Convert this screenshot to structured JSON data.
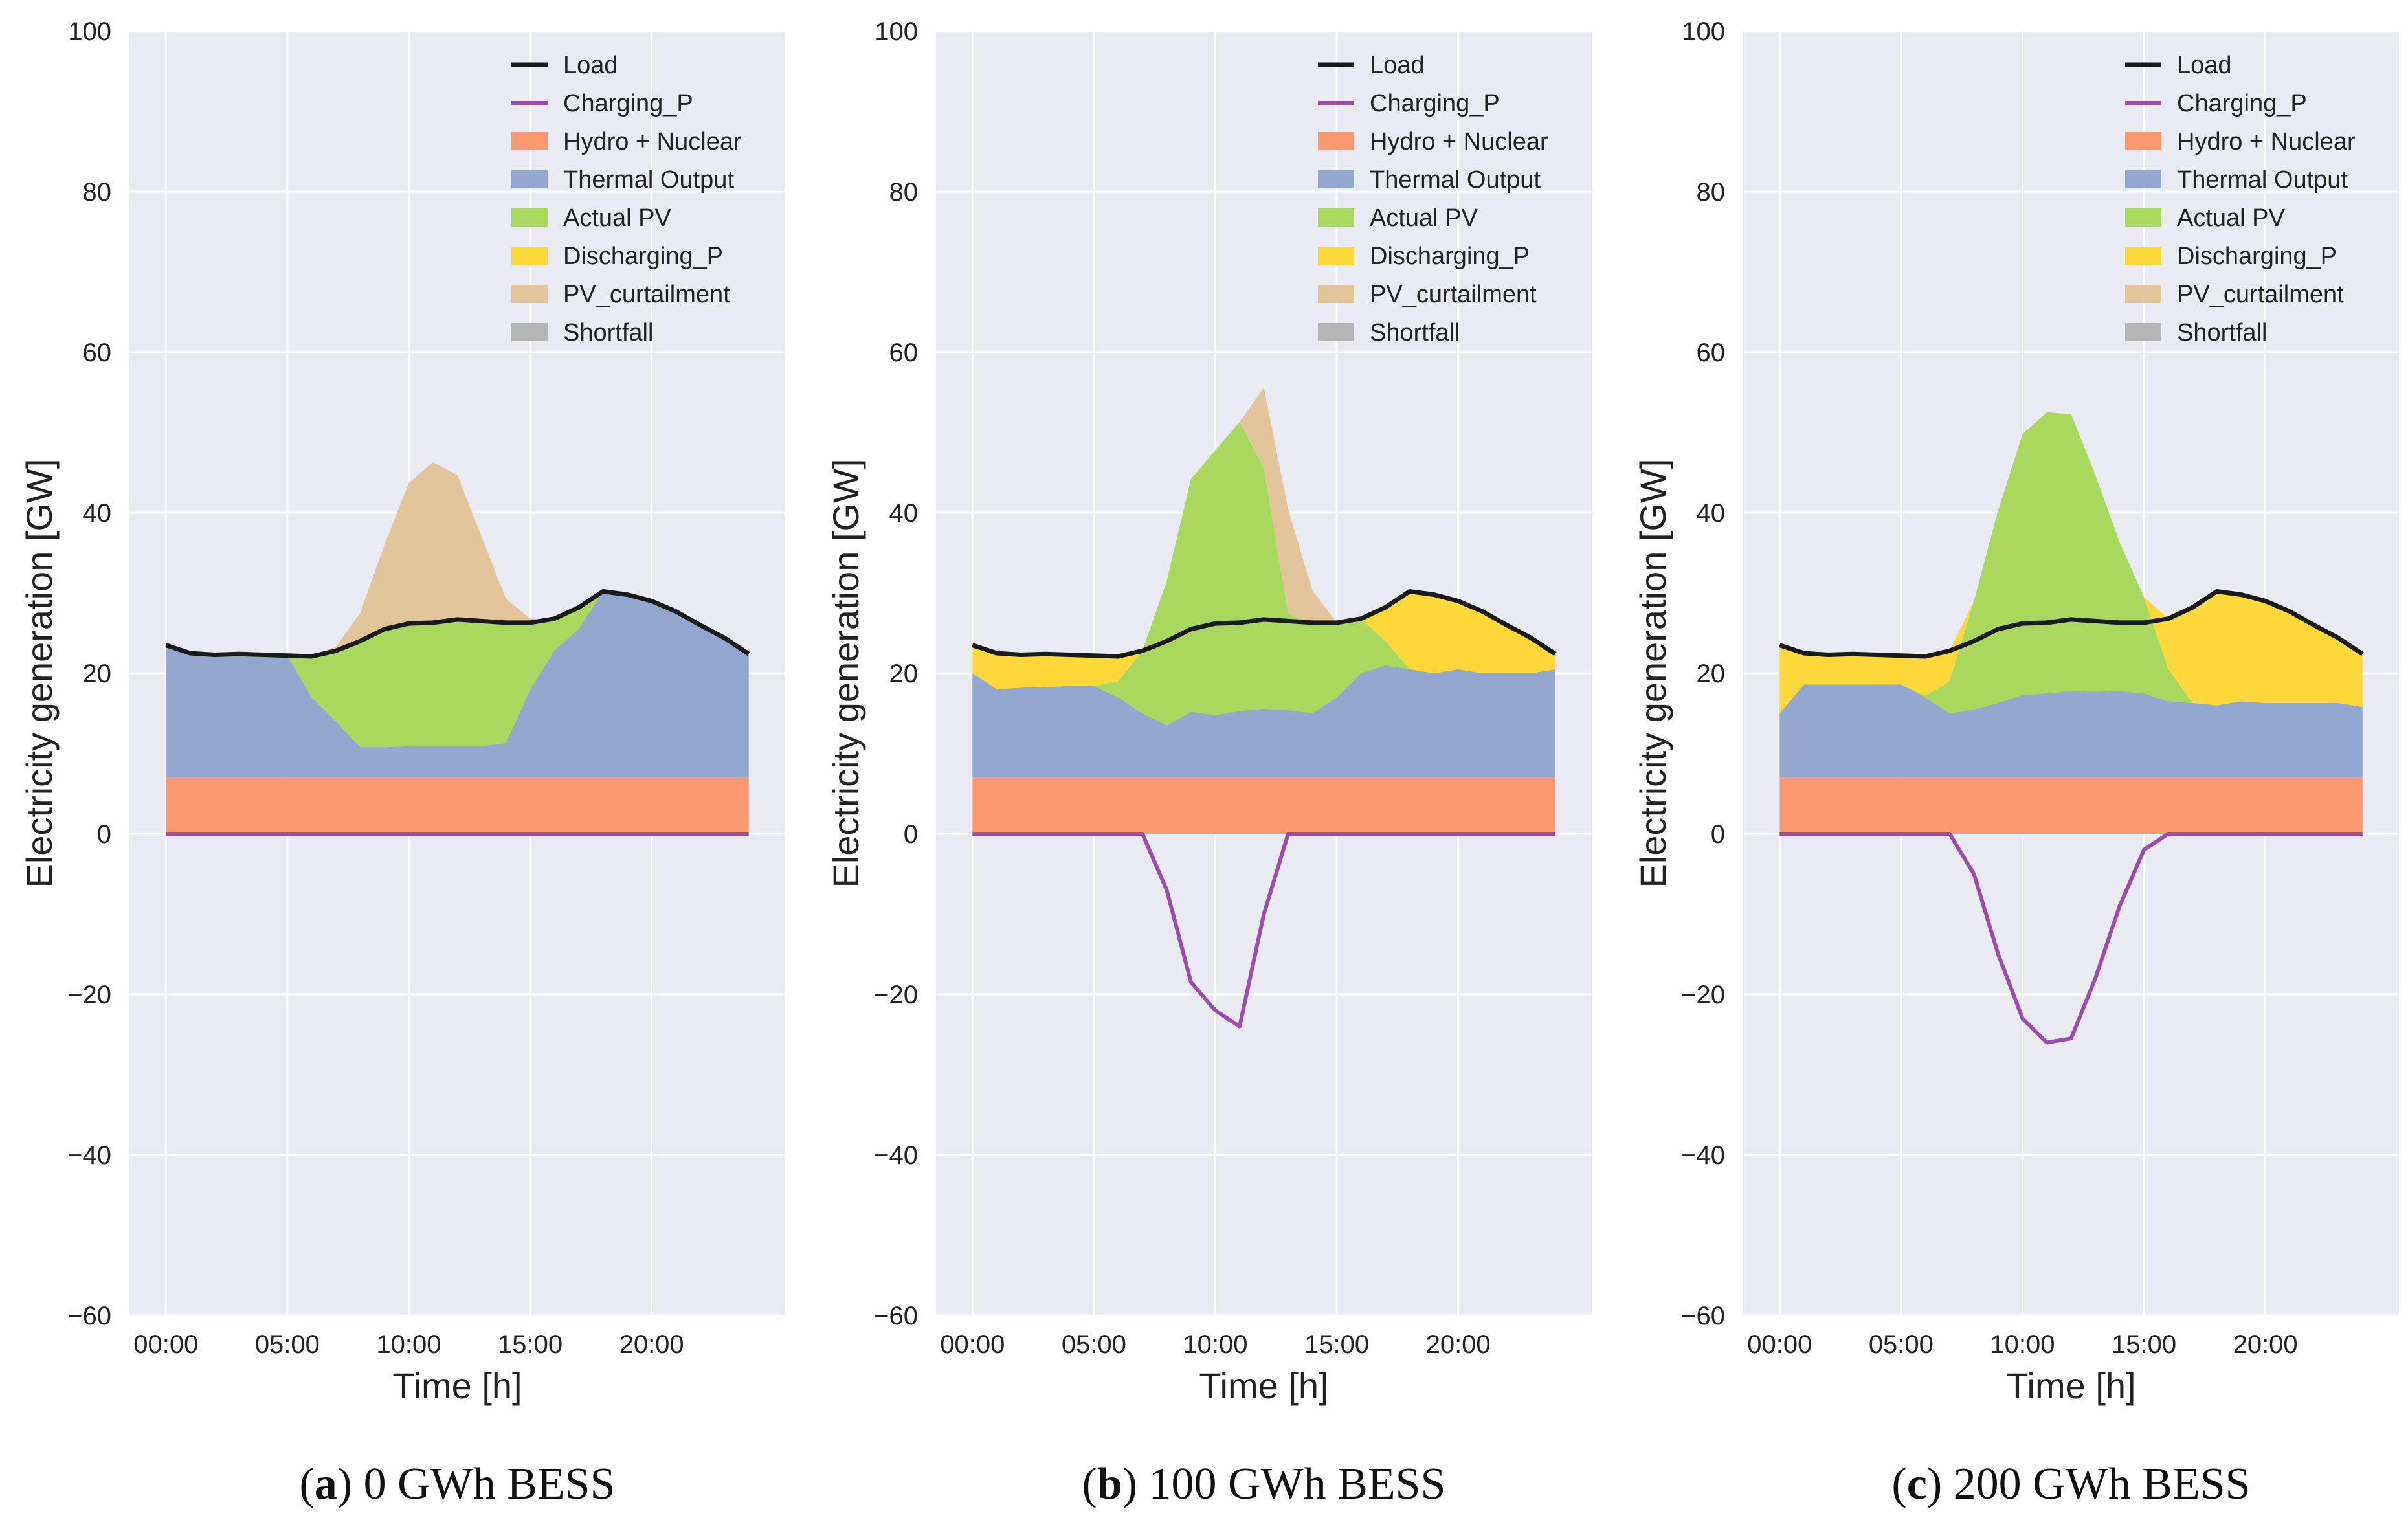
{
  "figure": {
    "colors": {
      "background": "#EAEAF2",
      "grid": "#FFFFFF",
      "load": "#1A1A1A",
      "charging": "#9B4DAE",
      "hydro_nuclear": "#FA9872",
      "thermal": "#94A7CF",
      "actual_pv": "#A8D95E",
      "discharging": "#FDD83A",
      "pv_curtailment": "#E2C59A",
      "shortfall": "#B5B5B5"
    },
    "legend_labels": [
      "Load",
      "Charging_P",
      "Hydro + Nuclear",
      "Thermal Output",
      "Actual PV",
      "Discharging_P",
      "PV_curtailment",
      "Shortfall"
    ]
  },
  "chart_data": [
    {
      "type": "area",
      "caption_letter": "a",
      "caption_text": " 0 GWh BESS",
      "xlabel": "Time [h]",
      "ylabel": "Electricity generation [GW]",
      "ylim": [
        -60,
        100
      ],
      "xlim": [
        -1.5,
        25.5
      ],
      "yticks": [
        -60,
        -40,
        -20,
        0,
        20,
        40,
        60,
        80,
        100
      ],
      "ytick_labels": [
        "−60",
        "−40",
        "−20",
        "0",
        "20",
        "40",
        "60",
        "80",
        "100"
      ],
      "xticks": [
        0,
        5,
        10,
        15,
        20
      ],
      "xtick_labels": [
        "00:00",
        "05:00",
        "10:00",
        "15:00",
        "20:00"
      ],
      "grid": true,
      "legend_position": "top-right",
      "x": [
        0,
        1,
        2,
        3,
        4,
        5,
        6,
        7,
        8,
        9,
        10,
        11,
        12,
        13,
        14,
        15,
        16,
        17,
        18,
        19,
        20,
        21,
        22,
        23,
        24
      ],
      "series": [
        {
          "name": "Load",
          "kind": "line",
          "values": [
            23.5,
            22.5,
            22.3,
            22.4,
            22.3,
            22.2,
            22.1,
            22.8,
            24.0,
            25.5,
            26.2,
            26.3,
            26.7,
            26.5,
            26.3,
            26.3,
            26.8,
            28.2,
            30.2,
            29.8,
            29.0,
            27.7,
            26.0,
            24.4,
            22.4
          ]
        },
        {
          "name": "Charging_P",
          "kind": "line",
          "values": [
            0,
            0,
            0,
            0,
            0,
            0,
            0,
            0,
            0,
            0,
            0,
            0,
            0,
            0,
            0,
            0,
            0,
            0,
            0,
            0,
            0,
            0,
            0,
            0,
            0
          ]
        },
        {
          "name": "Hydro + Nuclear",
          "kind": "area",
          "values": [
            7.0,
            7.0,
            7.0,
            7.0,
            7.0,
            7.0,
            7.0,
            7.0,
            7.0,
            7.0,
            7.0,
            7.0,
            7.0,
            7.0,
            7.0,
            7.0,
            7.0,
            7.0,
            7.0,
            7.0,
            7.0,
            7.0,
            7.0,
            7.0,
            7.0
          ]
        },
        {
          "name": "Thermal Output",
          "kind": "area",
          "values": [
            16.5,
            15.5,
            15.3,
            15.4,
            15.3,
            15.2,
            10.0,
            7.0,
            3.8,
            3.8,
            3.9,
            3.9,
            3.9,
            3.9,
            4.3,
            11.0,
            15.9,
            18.5,
            23.2,
            22.8,
            22.0,
            20.7,
            19.0,
            17.4,
            15.4
          ]
        },
        {
          "name": "Actual PV",
          "kind": "area",
          "values": [
            0,
            0,
            0,
            0,
            0,
            0,
            5.1,
            8.8,
            13.2,
            14.7,
            15.3,
            15.4,
            15.8,
            15.6,
            15.0,
            8.3,
            3.9,
            2.7,
            0,
            0,
            0,
            0,
            0,
            0,
            0
          ]
        },
        {
          "name": "Discharging_P",
          "kind": "area",
          "values": [
            0,
            0,
            0,
            0,
            0,
            0,
            0,
            0,
            0,
            0,
            0,
            0,
            0,
            0,
            0,
            0,
            0,
            0,
            0,
            0,
            0,
            0,
            0,
            0,
            0
          ]
        },
        {
          "name": "PV_curtailment",
          "kind": "area",
          "values": [
            0,
            0,
            0,
            0,
            0,
            0,
            0,
            0.5,
            3.5,
            10.5,
            17.5,
            20.0,
            18.0,
            10.5,
            3.0,
            0.5,
            0,
            0,
            0,
            0,
            0,
            0,
            0,
            0,
            0
          ]
        },
        {
          "name": "Shortfall",
          "kind": "area",
          "values": [
            0,
            0,
            0,
            0,
            0,
            0,
            0,
            0,
            0,
            0,
            0,
            0,
            0,
            0,
            0,
            0,
            0,
            0,
            0,
            0,
            0,
            0,
            0,
            0,
            0
          ]
        }
      ]
    },
    {
      "type": "area",
      "caption_letter": "b",
      "caption_text": " 100 GWh BESS",
      "xlabel": "Time [h]",
      "ylabel": "Electricity generation [GW]",
      "ylim": [
        -60,
        100
      ],
      "xlim": [
        -1.5,
        25.5
      ],
      "yticks": [
        -60,
        -40,
        -20,
        0,
        20,
        40,
        60,
        80,
        100
      ],
      "ytick_labels": [
        "−60",
        "−40",
        "−20",
        "0",
        "20",
        "40",
        "60",
        "80",
        "100"
      ],
      "xticks": [
        0,
        5,
        10,
        15,
        20
      ],
      "xtick_labels": [
        "00:00",
        "05:00",
        "10:00",
        "15:00",
        "20:00"
      ],
      "grid": true,
      "legend_position": "top-right",
      "x": [
        0,
        1,
        2,
        3,
        4,
        5,
        6,
        7,
        8,
        9,
        10,
        11,
        12,
        13,
        14,
        15,
        16,
        17,
        18,
        19,
        20,
        21,
        22,
        23,
        24
      ],
      "series": [
        {
          "name": "Load",
          "kind": "line",
          "values": [
            23.5,
            22.5,
            22.3,
            22.4,
            22.3,
            22.2,
            22.1,
            22.8,
            24.0,
            25.5,
            26.2,
            26.3,
            26.7,
            26.5,
            26.3,
            26.3,
            26.8,
            28.2,
            30.2,
            29.8,
            29.0,
            27.7,
            26.0,
            24.4,
            22.4
          ]
        },
        {
          "name": "Charging_P",
          "kind": "line",
          "values": [
            0,
            0,
            0,
            0,
            0,
            0,
            0,
            0,
            -7.0,
            -18.5,
            -22.0,
            -24.0,
            -10.0,
            0,
            0,
            0,
            0,
            0,
            0,
            0,
            0,
            0,
            0,
            0,
            0
          ]
        },
        {
          "name": "Hydro + Nuclear",
          "kind": "area",
          "values": [
            7.0,
            7.0,
            7.0,
            7.0,
            7.0,
            7.0,
            7.0,
            7.0,
            7.0,
            7.0,
            7.0,
            7.0,
            7.0,
            7.0,
            7.0,
            7.0,
            7.0,
            7.0,
            7.0,
            7.0,
            7.0,
            7.0,
            7.0,
            7.0,
            7.0
          ]
        },
        {
          "name": "Thermal Output",
          "kind": "area",
          "values": [
            13.0,
            11.0,
            11.2,
            11.3,
            11.4,
            11.4,
            10.0,
            8.0,
            6.5,
            8.2,
            7.8,
            8.3,
            8.6,
            8.4,
            8.0,
            10.0,
            13.0,
            14.0,
            13.5,
            13.0,
            13.5,
            13.0,
            13.0,
            13.0,
            13.5
          ]
        },
        {
          "name": "Actual PV",
          "kind": "area",
          "values": [
            0,
            0,
            0,
            0,
            0,
            0,
            2.0,
            7.8,
            18.0,
            29.0,
            33.0,
            36.0,
            30.0,
            12.0,
            11.3,
            9.3,
            6.8,
            3.0,
            0,
            0,
            0,
            0,
            0,
            0,
            0
          ]
        },
        {
          "name": "Discharging_P",
          "kind": "area",
          "values": [
            3.5,
            4.5,
            4.1,
            4.1,
            3.9,
            3.8,
            3.1,
            0,
            0,
            0,
            0,
            0,
            0,
            0,
            0,
            0,
            0,
            4.2,
            9.7,
            9.8,
            8.5,
            7.7,
            6.0,
            4.4,
            1.9
          ]
        },
        {
          "name": "PV_curtailment",
          "kind": "area",
          "values": [
            0,
            0,
            0,
            0,
            0,
            0,
            0,
            0,
            0,
            0,
            0,
            0,
            10.0,
            13.0,
            4.0,
            0,
            0,
            0,
            0,
            0,
            0,
            0,
            0,
            0,
            0
          ]
        },
        {
          "name": "Shortfall",
          "kind": "area",
          "values": [
            0,
            0,
            0,
            0,
            0,
            0,
            0,
            0,
            0,
            0,
            0,
            0,
            0,
            0,
            0,
            0,
            0,
            0,
            0,
            0,
            0,
            0,
            0,
            0,
            0
          ]
        }
      ]
    },
    {
      "type": "area",
      "caption_letter": "c",
      "caption_text": " 200 GWh BESS",
      "xlabel": "Time [h]",
      "ylabel": "Electricity generation [GW]",
      "ylim": [
        -60,
        100
      ],
      "xlim": [
        -1.5,
        25.5
      ],
      "yticks": [
        -60,
        -40,
        -20,
        0,
        20,
        40,
        60,
        80,
        100
      ],
      "ytick_labels": [
        "−60",
        "−40",
        "−20",
        "0",
        "20",
        "40",
        "60",
        "80",
        "100"
      ],
      "xticks": [
        0,
        5,
        10,
        15,
        20
      ],
      "xtick_labels": [
        "00:00",
        "05:00",
        "10:00",
        "15:00",
        "20:00"
      ],
      "grid": true,
      "legend_position": "top-right",
      "x": [
        0,
        1,
        2,
        3,
        4,
        5,
        6,
        7,
        8,
        9,
        10,
        11,
        12,
        13,
        14,
        15,
        16,
        17,
        18,
        19,
        20,
        21,
        22,
        23,
        24
      ],
      "series": [
        {
          "name": "Load",
          "kind": "line",
          "values": [
            23.5,
            22.5,
            22.3,
            22.4,
            22.3,
            22.2,
            22.1,
            22.8,
            24.0,
            25.5,
            26.2,
            26.3,
            26.7,
            26.5,
            26.3,
            26.3,
            26.8,
            28.2,
            30.2,
            29.8,
            29.0,
            27.7,
            26.0,
            24.4,
            22.4
          ]
        },
        {
          "name": "Charging_P",
          "kind": "line",
          "values": [
            0,
            0,
            0,
            0,
            0,
            0,
            0,
            0,
            -5.0,
            -15.0,
            -23.0,
            -26.0,
            -25.5,
            -18.0,
            -9.0,
            -2.0,
            0,
            0,
            0,
            0,
            0,
            0,
            0,
            0,
            0
          ]
        },
        {
          "name": "Hydro + Nuclear",
          "kind": "area",
          "values": [
            7.0,
            7.0,
            7.0,
            7.0,
            7.0,
            7.0,
            7.0,
            7.0,
            7.0,
            7.0,
            7.0,
            7.0,
            7.0,
            7.0,
            7.0,
            7.0,
            7.0,
            7.0,
            7.0,
            7.0,
            7.0,
            7.0,
            7.0,
            7.0,
            7.0
          ]
        },
        {
          "name": "Thermal Output",
          "kind": "area",
          "values": [
            8.0,
            11.6,
            11.6,
            11.6,
            11.6,
            11.6,
            10.0,
            8.0,
            8.5,
            9.3,
            10.3,
            10.5,
            10.8,
            10.7,
            10.8,
            10.5,
            9.5,
            9.3,
            9.0,
            9.5,
            9.3,
            9.3,
            9.3,
            9.3,
            8.8
          ]
        },
        {
          "name": "Actual PV",
          "kind": "area",
          "values": [
            0,
            0,
            0,
            0,
            0,
            0,
            0.2,
            4.0,
            13.5,
            24.0,
            32.5,
            35.0,
            34.5,
            27.0,
            18.5,
            12.0,
            4.0,
            0,
            0,
            0,
            0,
            0,
            0,
            0,
            0
          ]
        },
        {
          "name": "Discharging_P",
          "kind": "area",
          "values": [
            8.5,
            3.9,
            3.7,
            3.8,
            3.7,
            3.6,
            4.9,
            3.8,
            0,
            0,
            0,
            0,
            0,
            0,
            0,
            0,
            6.3,
            11.9,
            14.2,
            13.3,
            12.7,
            11.4,
            9.7,
            8.1,
            6.6
          ]
        },
        {
          "name": "PV_curtailment",
          "kind": "area",
          "values": [
            0,
            0,
            0,
            0,
            0,
            0,
            0,
            0,
            0,
            0,
            0,
            0,
            0,
            0,
            0,
            0,
            0,
            0,
            0,
            0,
            0,
            0,
            0,
            0,
            0
          ]
        },
        {
          "name": "Shortfall",
          "kind": "area",
          "values": [
            0,
            0,
            0,
            0,
            0,
            0,
            0,
            0,
            0,
            0,
            0,
            0,
            0,
            0,
            0,
            0,
            0,
            0,
            0,
            0,
            0,
            0,
            0,
            0,
            0
          ]
        }
      ]
    }
  ]
}
